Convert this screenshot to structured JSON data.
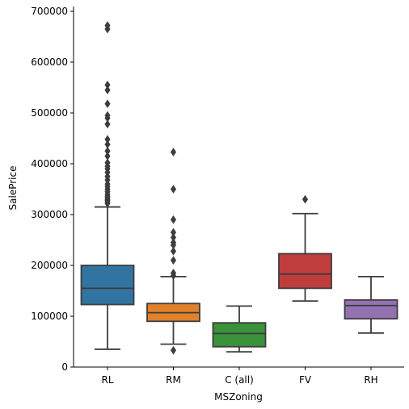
{
  "chart_data": {
    "type": "box",
    "title": "",
    "xlabel": "MSZoning",
    "ylabel": "SalePrice",
    "ylim": [
      0,
      700000
    ],
    "yticks": [
      0,
      100000,
      200000,
      300000,
      400000,
      500000,
      600000,
      700000
    ],
    "ytick_labels": [
      "0",
      "100000",
      "200000",
      "300000",
      "400000",
      "500000",
      "600000",
      "700000"
    ],
    "grid": false,
    "legend": "none",
    "categories": [
      "RL",
      "RM",
      "C (all)",
      "FV",
      "RH"
    ],
    "colors": [
      "#3274a1",
      "#e1812c",
      "#3a923a",
      "#c03d3e",
      "#9372b2"
    ],
    "line_color": "#3d3d3d",
    "boxes": [
      {
        "category": "RL",
        "whisker_low": 35000,
        "q1": 123000,
        "median": 155000,
        "q3": 200000,
        "whisker_high": 315000,
        "outliers": [
          322000,
          325000,
          328000,
          330000,
          333000,
          336000,
          340000,
          345000,
          350000,
          355000,
          360000,
          368000,
          375000,
          383000,
          390000,
          395000,
          402000,
          415000,
          425000,
          438000,
          448000,
          478000,
          490000,
          495000,
          518000,
          545000,
          555000,
          665000,
          672000
        ]
      },
      {
        "category": "RM",
        "whisker_low": 45000,
        "q1": 90000,
        "median": 107000,
        "q3": 125000,
        "whisker_high": 178000,
        "outliers": [
          33000,
          180000,
          185000,
          210000,
          228000,
          240000,
          245000,
          255000,
          265000,
          290000,
          350000,
          423000
        ]
      },
      {
        "category": "C (all)",
        "whisker_low": 30000,
        "q1": 40000,
        "median": 66000,
        "q3": 87000,
        "whisker_high": 120000,
        "outliers": []
      },
      {
        "category": "FV",
        "whisker_low": 130000,
        "q1": 155000,
        "median": 183000,
        "q3": 223000,
        "whisker_high": 302000,
        "outliers": [
          330000
        ]
      },
      {
        "category": "RH",
        "whisker_low": 67000,
        "q1": 95000,
        "median": 121000,
        "q3": 132000,
        "whisker_high": 178000,
        "outliers": []
      }
    ]
  }
}
